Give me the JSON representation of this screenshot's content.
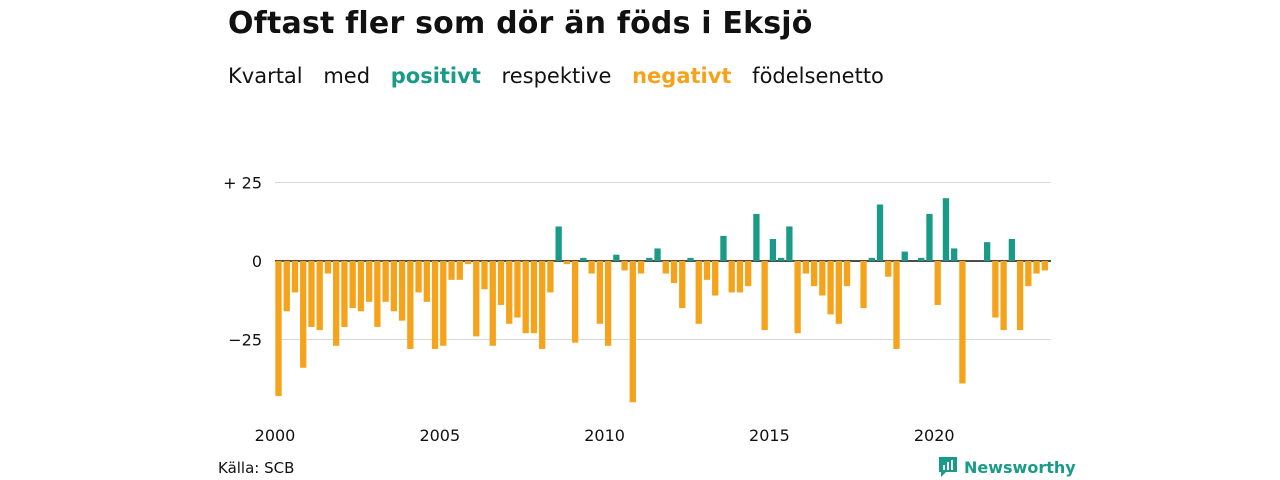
{
  "title": "Oftast fler som dör än föds i Eksjö",
  "subtitle": {
    "part1": "Kvartal",
    "part2": "med",
    "positive": "positivt",
    "part3": "respektive",
    "negative": "negativt",
    "part4": "födelsenetto"
  },
  "source": "Källa: SCB",
  "brand": "Newsworthy",
  "colors": {
    "positive": "#1a9b87",
    "negative": "#f5a31a",
    "grid": "#d9d9d9",
    "brand": "#1a9b87"
  },
  "icons": {
    "brand_logo": "newsworthy-chart-bubble-icon"
  },
  "chart_data": {
    "type": "bar",
    "title": "Oftast fler som dör än föds i Eksjö",
    "xlabel": "",
    "ylabel": "",
    "x_start": "2000 Q1",
    "x_tick_labels": [
      "2000",
      "2005",
      "2010",
      "2015",
      "2020"
    ],
    "y_tick_labels": [
      "+ 25",
      "0",
      "−25"
    ],
    "y_ticks": [
      25,
      0,
      -25
    ],
    "ylim": [
      -50,
      25
    ],
    "grid": true,
    "values": [
      -43,
      -16,
      -10,
      -34,
      -21,
      -22,
      -4,
      -27,
      -21,
      -15,
      -16,
      -13,
      -21,
      -13,
      -16,
      -19,
      -28,
      -10,
      -13,
      -28,
      -27,
      -6,
      -6,
      -1,
      -24,
      -9,
      -27,
      -14,
      -20,
      -18,
      -23,
      -23,
      -28,
      -10,
      11,
      -1,
      -26,
      1,
      -4,
      -20,
      -27,
      2,
      -3,
      -45,
      -4,
      1,
      4,
      -4,
      -7,
      -15,
      1,
      -20,
      -6,
      -11,
      8,
      -10,
      -10,
      -8,
      15,
      -22,
      7,
      1,
      11,
      -23,
      -4,
      -8,
      -11,
      -17,
      -20,
      -8,
      0,
      -15,
      1,
      18,
      -5,
      -28,
      3,
      0,
      1,
      15,
      -14,
      20,
      4,
      -39,
      0,
      0,
      6,
      -18,
      -22,
      7,
      -22,
      -8,
      -4,
      -3
    ]
  }
}
